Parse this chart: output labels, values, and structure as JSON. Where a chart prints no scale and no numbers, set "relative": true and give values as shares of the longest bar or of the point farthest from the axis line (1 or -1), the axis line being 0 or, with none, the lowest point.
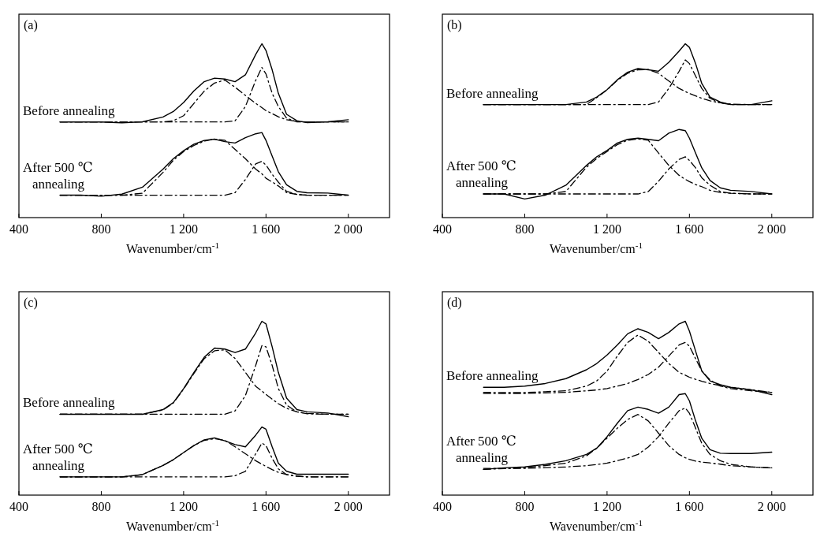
{
  "chart_data": [
    {
      "type": "line",
      "title": "(a)",
      "xlabel": "Wavenumber/cm$^{-1}$",
      "relative": true,
      "xlim": [
        400,
        2200
      ],
      "xticks": [
        {
          "value": 400,
          "label": "400"
        },
        {
          "value": 800,
          "label": "800"
        },
        {
          "value": 1200,
          "label": "1 200"
        },
        {
          "value": 1600,
          "label": "1 600"
        },
        {
          "value": 2000,
          "label": "2 000"
        }
      ],
      "x": [
        600,
        700,
        800,
        900,
        1000,
        1100,
        1150,
        1200,
        1250,
        1300,
        1350,
        1400,
        1450,
        1500,
        1550,
        1580,
        1600,
        1630,
        1660,
        1700,
        1750,
        1800,
        1900,
        2000
      ],
      "series": [
        {
          "name": "Before annealing",
          "color": "#000000",
          "line_style": "solid",
          "values": [
            0.55,
            0.55,
            0.55,
            0.545,
            0.551,
            0.579,
            0.61,
            0.662,
            0.729,
            0.782,
            0.802,
            0.797,
            0.782,
            0.821,
            0.938,
            1,
            0.961,
            0.85,
            0.715,
            0.594,
            0.557,
            0.546,
            0.551,
            0.563
          ]
        },
        {
          "color": "#000000",
          "line_style": "dashed",
          "values": [
            0.55,
            0.55,
            0.55,
            0.55,
            0.55,
            0.55,
            0.557,
            0.586,
            0.657,
            0.727,
            0.774,
            0.791,
            0.75,
            0.703,
            0.657,
            0.633,
            0.615,
            0.598,
            0.58,
            0.563,
            0.553,
            0.55,
            0.55,
            0.55
          ]
        },
        {
          "color": "#000000",
          "line_style": "dashed",
          "values": [
            0.55,
            0.55,
            0.55,
            0.55,
            0.55,
            0.55,
            0.55,
            0.55,
            0.55,
            0.55,
            0.55,
            0.55,
            0.557,
            0.639,
            0.789,
            0.864,
            0.826,
            0.715,
            0.639,
            0.572,
            0.55,
            0.55,
            0.55,
            0.55
          ]
        },
        {
          "name": "After 500 ℃ annealing",
          "color": "#000000",
          "line_style": "solid",
          "values": [
            0.129,
            0.129,
            0.123,
            0.135,
            0.175,
            0.279,
            0.339,
            0.385,
            0.422,
            0.444,
            0.451,
            0.437,
            0.429,
            0.46,
            0.482,
            0.489,
            0.444,
            0.354,
            0.264,
            0.189,
            0.151,
            0.143,
            0.141,
            0.129
          ]
        },
        {
          "color": "#000000",
          "line_style": "dashed",
          "values": [
            0.129,
            0.129,
            0.129,
            0.129,
            0.14,
            0.26,
            0.33,
            0.38,
            0.415,
            0.44,
            0.451,
            0.445,
            0.392,
            0.339,
            0.279,
            0.252,
            0.226,
            0.205,
            0.182,
            0.144,
            0.133,
            0.129,
            0.129,
            0.129
          ]
        },
        {
          "color": "#000000",
          "line_style": "dashed",
          "values": [
            0.129,
            0.129,
            0.129,
            0.129,
            0.129,
            0.129,
            0.129,
            0.129,
            0.129,
            0.129,
            0.129,
            0.129,
            0.144,
            0.219,
            0.309,
            0.324,
            0.302,
            0.249,
            0.204,
            0.151,
            0.133,
            0.129,
            0.129,
            0.129
          ]
        }
      ]
    },
    {
      "type": "line",
      "title": "(b)",
      "xlabel": "Wavenumber/cm$^{-1}$",
      "relative": true,
      "xlim": [
        400,
        2200
      ],
      "xticks": [
        {
          "value": 400,
          "label": "400"
        },
        {
          "value": 800,
          "label": "800"
        },
        {
          "value": 1200,
          "label": "1 200"
        },
        {
          "value": 1600,
          "label": "1 600"
        },
        {
          "value": 2000,
          "label": "2 000"
        }
      ],
      "x": [
        600,
        700,
        800,
        900,
        1000,
        1100,
        1150,
        1200,
        1250,
        1300,
        1350,
        1400,
        1450,
        1500,
        1550,
        1580,
        1600,
        1630,
        1660,
        1700,
        1750,
        1800,
        1900,
        2000
      ],
      "series": [
        {
          "name": "Before annealing",
          "color": "#000000",
          "line_style": "solid",
          "values": [
            0.65,
            0.65,
            0.65,
            0.65,
            0.65,
            0.665,
            0.693,
            0.736,
            0.793,
            0.836,
            0.857,
            0.85,
            0.842,
            0.893,
            0.958,
            1,
            0.979,
            0.886,
            0.771,
            0.693,
            0.665,
            0.65,
            0.65,
            0.672
          ]
        },
        {
          "color": "#000000",
          "line_style": "dashed",
          "values": [
            0.65,
            0.65,
            0.65,
            0.65,
            0.65,
            0.65,
            0.69,
            0.735,
            0.79,
            0.83,
            0.85,
            0.852,
            0.83,
            0.786,
            0.743,
            0.725,
            0.714,
            0.7,
            0.686,
            0.672,
            0.66,
            0.653,
            0.65,
            0.65
          ]
        },
        {
          "color": "#000000",
          "line_style": "dashed",
          "values": [
            0.65,
            0.65,
            0.65,
            0.65,
            0.65,
            0.65,
            0.65,
            0.65,
            0.65,
            0.65,
            0.65,
            0.65,
            0.665,
            0.743,
            0.842,
            0.907,
            0.886,
            0.814,
            0.743,
            0.686,
            0.66,
            0.65,
            0.65,
            0.65
          ]
        },
        {
          "name": "After 500 ℃ annealing",
          "color": "#000000",
          "line_style": "solid",
          "values": [
            0.136,
            0.136,
            0.107,
            0.129,
            0.186,
            0.3,
            0.35,
            0.386,
            0.429,
            0.45,
            0.457,
            0.45,
            0.442,
            0.486,
            0.507,
            0.5,
            0.457,
            0.371,
            0.286,
            0.214,
            0.171,
            0.157,
            0.15,
            0.136
          ]
        },
        {
          "color": "#000000",
          "line_style": "dashed",
          "values": [
            0.136,
            0.136,
            0.136,
            0.136,
            0.15,
            0.29,
            0.34,
            0.38,
            0.42,
            0.445,
            0.452,
            0.445,
            0.371,
            0.3,
            0.243,
            0.22,
            0.207,
            0.19,
            0.178,
            0.157,
            0.145,
            0.14,
            0.136,
            0.136
          ]
        },
        {
          "color": "#000000",
          "line_style": "dashed",
          "values": [
            0.136,
            0.136,
            0.136,
            0.136,
            0.136,
            0.136,
            0.136,
            0.136,
            0.136,
            0.136,
            0.136,
            0.15,
            0.209,
            0.28,
            0.335,
            0.35,
            0.329,
            0.286,
            0.229,
            0.186,
            0.15,
            0.14,
            0.136,
            0.136
          ]
        }
      ]
    },
    {
      "type": "line",
      "title": "(c)",
      "xlabel": "Wavenumber/cm$^{-1}$",
      "relative": true,
      "xlim": [
        400,
        2200
      ],
      "xticks": [
        {
          "value": 400,
          "label": "400"
        },
        {
          "value": 800,
          "label": "800"
        },
        {
          "value": 1200,
          "label": "1 200"
        },
        {
          "value": 1600,
          "label": "1 600"
        },
        {
          "value": 2000,
          "label": "2 000"
        }
      ],
      "x": [
        600,
        700,
        800,
        900,
        1000,
        1100,
        1150,
        1200,
        1250,
        1300,
        1350,
        1400,
        1450,
        1500,
        1550,
        1580,
        1600,
        1630,
        1660,
        1700,
        1750,
        1800,
        1900,
        2000
      ],
      "series": [
        {
          "name": "Before annealing",
          "color": "#000000",
          "line_style": "solid",
          "values": [
            0.465,
            0.465,
            0.465,
            0.465,
            0.465,
            0.492,
            0.532,
            0.613,
            0.706,
            0.793,
            0.846,
            0.84,
            0.82,
            0.84,
            0.933,
            1,
            0.985,
            0.853,
            0.706,
            0.558,
            0.492,
            0.479,
            0.472,
            0.451
          ]
        },
        {
          "color": "#000000",
          "line_style": "dashed",
          "values": [
            0.465,
            0.465,
            0.465,
            0.465,
            0.465,
            0.49,
            0.53,
            0.61,
            0.7,
            0.785,
            0.83,
            0.836,
            0.786,
            0.706,
            0.626,
            0.599,
            0.579,
            0.552,
            0.526,
            0.499,
            0.479,
            0.47,
            0.465,
            0.465
          ]
        },
        {
          "color": "#000000",
          "line_style": "dashed",
          "values": [
            0.465,
            0.465,
            0.465,
            0.465,
            0.465,
            0.465,
            0.465,
            0.465,
            0.465,
            0.465,
            0.465,
            0.465,
            0.485,
            0.572,
            0.746,
            0.86,
            0.853,
            0.746,
            0.613,
            0.518,
            0.479,
            0.468,
            0.465,
            0.465
          ]
        },
        {
          "name": "After 500 ℃ annealing",
          "color": "#000000",
          "line_style": "solid",
          "values": [
            0.105,
            0.105,
            0.105,
            0.105,
            0.118,
            0.171,
            0.204,
            0.245,
            0.285,
            0.318,
            0.329,
            0.312,
            0.291,
            0.278,
            0.345,
            0.392,
            0.379,
            0.278,
            0.184,
            0.137,
            0.12,
            0.12,
            0.12,
            0.12
          ]
        },
        {
          "color": "#000000",
          "line_style": "dashed",
          "values": [
            0.105,
            0.105,
            0.105,
            0.105,
            0.118,
            0.171,
            0.204,
            0.245,
            0.285,
            0.315,
            0.325,
            0.315,
            0.278,
            0.238,
            0.198,
            0.178,
            0.165,
            0.147,
            0.131,
            0.118,
            0.11,
            0.105,
            0.105,
            0.105
          ]
        },
        {
          "color": "#000000",
          "line_style": "dashed",
          "values": [
            0.105,
            0.105,
            0.105,
            0.105,
            0.105,
            0.105,
            0.105,
            0.105,
            0.105,
            0.105,
            0.105,
            0.105,
            0.112,
            0.137,
            0.238,
            0.299,
            0.285,
            0.211,
            0.151,
            0.118,
            0.108,
            0.105,
            0.105,
            0.105
          ]
        }
      ]
    },
    {
      "type": "line",
      "title": "(d)",
      "xlabel": "Wavenumber/cm$^{-1}$",
      "relative": true,
      "xlim": [
        400,
        2200
      ],
      "xticks": [
        {
          "value": 400,
          "label": "400"
        },
        {
          "value": 800,
          "label": "800"
        },
        {
          "value": 1200,
          "label": "1 200"
        },
        {
          "value": 1600,
          "label": "1 600"
        },
        {
          "value": 2000,
          "label": "2 000"
        }
      ],
      "x": [
        600,
        700,
        800,
        900,
        1000,
        1100,
        1150,
        1200,
        1250,
        1300,
        1350,
        1400,
        1450,
        1500,
        1550,
        1580,
        1600,
        1630,
        1660,
        1700,
        1750,
        1800,
        1900,
        2000
      ],
      "series": [
        {
          "name": "Before annealing",
          "color": "#000000",
          "line_style": "solid",
          "values": [
            0.62,
            0.62,
            0.627,
            0.642,
            0.67,
            0.721,
            0.757,
            0.806,
            0.864,
            0.928,
            0.957,
            0.936,
            0.9,
            0.936,
            0.985,
            1,
            0.943,
            0.828,
            0.714,
            0.657,
            0.635,
            0.62,
            0.606,
            0.578
          ]
        },
        {
          "color": "#000000",
          "line_style": "dashed",
          "values": [
            0.591,
            0.59,
            0.59,
            0.595,
            0.6,
            0.627,
            0.657,
            0.714,
            0.8,
            0.878,
            0.921,
            0.885,
            0.821,
            0.757,
            0.706,
            0.69,
            0.678,
            0.666,
            0.655,
            0.642,
            0.63,
            0.62,
            0.606,
            0.591
          ]
        },
        {
          "color": "#000000",
          "line_style": "dashed",
          "values": [
            0.584,
            0.585,
            0.585,
            0.588,
            0.591,
            0.6,
            0.605,
            0.613,
            0.627,
            0.642,
            0.665,
            0.694,
            0.736,
            0.8,
            0.864,
            0.878,
            0.857,
            0.785,
            0.714,
            0.663,
            0.627,
            0.613,
            0.6,
            0.591
          ]
        },
        {
          "name": "After 500 ℃ annealing",
          "color": "#000000",
          "line_style": "solid",
          "values": [
            0.148,
            0.157,
            0.162,
            0.177,
            0.198,
            0.234,
            0.27,
            0.336,
            0.414,
            0.486,
            0.506,
            0.493,
            0.471,
            0.506,
            0.578,
            0.584,
            0.542,
            0.427,
            0.327,
            0.261,
            0.241,
            0.239,
            0.239,
            0.247
          ]
        },
        {
          "color": "#000000",
          "line_style": "dashed",
          "values": [
            0.148,
            0.153,
            0.158,
            0.17,
            0.184,
            0.226,
            0.27,
            0.328,
            0.385,
            0.435,
            0.464,
            0.427,
            0.356,
            0.284,
            0.234,
            0.215,
            0.206,
            0.196,
            0.19,
            0.185,
            0.178,
            0.169,
            0.162,
            0.157
          ]
        },
        {
          "color": "#000000",
          "line_style": "dashed",
          "values": [
            0.154,
            0.154,
            0.154,
            0.158,
            0.162,
            0.169,
            0.176,
            0.184,
            0.198,
            0.213,
            0.234,
            0.277,
            0.336,
            0.414,
            0.486,
            0.501,
            0.471,
            0.385,
            0.298,
            0.234,
            0.198,
            0.177,
            0.162,
            0.157
          ]
        }
      ]
    }
  ]
}
